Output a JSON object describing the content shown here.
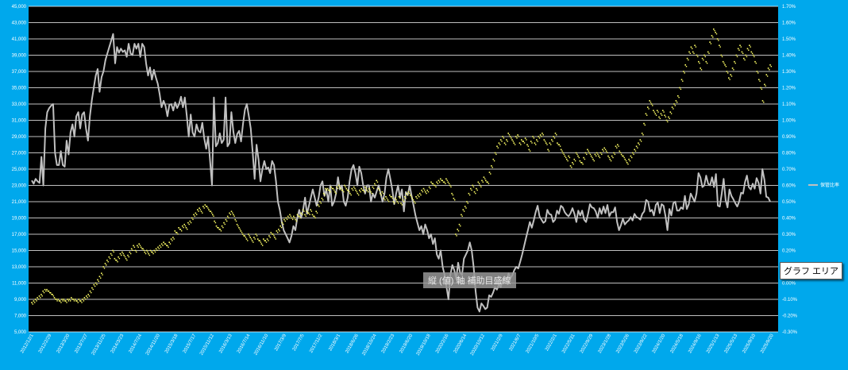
{
  "tooltip": "グラフ エリア",
  "axis_label_hint": "縦 (値) 軸 補助目盛線",
  "colors": {
    "background": "#00a8ec",
    "plot": "#000000",
    "grid": "#ffffff",
    "price_line": "#c0c0c0",
    "ratio_dots": "#ffff66"
  },
  "chart_data": {
    "type": "line",
    "grid": true,
    "legend_position": "right",
    "y_left": {
      "min": 5000,
      "max": 45000,
      "ticks": [
        "5,000",
        "7,000",
        "9,000",
        "11,000",
        "13,000",
        "15,000",
        "17,000",
        "19,000",
        "21,000",
        "23,000",
        "25,000",
        "27,000",
        "29,000",
        "31,000",
        "33,000",
        "35,000",
        "37,000",
        "39,000",
        "41,000",
        "43,000",
        "45,000"
      ]
    },
    "y_right": {
      "min": -0.3,
      "max": 1.7,
      "ticks": [
        "-0.30%",
        "-0.20%",
        "-0.10%",
        "0.00%",
        "0.10%",
        "0.20%",
        "0.30%",
        "0.40%",
        "0.50%",
        "0.60%",
        "0.70%",
        "0.80%",
        "0.90%",
        "1.00%",
        "1.10%",
        "1.20%",
        "1.30%",
        "1.40%",
        "1.50%",
        "1.60%",
        "1.70%"
      ]
    },
    "x_ticks": [
      "2012/12/1",
      "2012/2/29",
      "2013/3/20",
      "2013/7/27",
      "2013/11/25",
      "2014/3/23",
      "2014/7/24",
      "2014/11/20",
      "2015/3/18",
      "2015/7/17",
      "2015/11/12",
      "2016/3/13",
      "2016/7/14",
      "2016/11/10",
      "2017/3/9",
      "2017/7/5",
      "2017/11/2",
      "2018/3/1",
      "2018/6/26",
      "2018/10/24",
      "2019/2/23",
      "2019/6/20",
      "2019/10/18",
      "2020/2/16",
      "2020/6/14",
      "2020/10/12",
      "2021/2/9",
      "2021/6/7",
      "2021/10/5",
      "2022/2/1",
      "2022/5/31",
      "2022/9/29",
      "2023/1/28",
      "2023/5/26",
      "2023/9/22",
      "2024/1/20",
      "2024/5/18",
      "2024/9/16",
      "2025/1/13",
      "2025/5/13",
      "2025/9/10",
      "2025/9/20"
    ],
    "series": [
      {
        "key": "price",
        "axis": "left",
        "style": "line",
        "values": [
          23600,
          23200,
          23800,
          23500,
          23300,
          26500,
          23000,
          30000,
          32000,
          32500,
          32800,
          33000,
          27000,
          25500,
          25500,
          27200,
          25500,
          25300,
          28500,
          26800,
          29500,
          30500,
          29000,
          31500,
          32000,
          30000,
          31700,
          32000,
          30000,
          28500,
          31500,
          33500,
          35000,
          36500,
          37300,
          34500,
          36300,
          37000,
          38400,
          39200,
          40000,
          40800,
          41600,
          38000,
          40000,
          39300,
          39800,
          39400,
          39600,
          38800,
          40400,
          39200,
          39000,
          40400,
          39800,
          40400,
          38800,
          40400,
          40000,
          38000,
          36500,
          37500,
          36000,
          37200,
          36300,
          35500,
          34200,
          32600,
          33400,
          32800,
          31500,
          32900,
          33000,
          32200,
          33200,
          32500,
          33000,
          33900,
          32600,
          33800,
          31500,
          29000,
          31700,
          29500,
          29000,
          30500,
          29700,
          29500,
          30700,
          28800,
          27500,
          29000,
          26000,
          23000,
          33800,
          27800,
          28200,
          29400,
          28200,
          28600,
          33800,
          27800,
          28200,
          32000,
          29600,
          28200,
          29300,
          29700,
          28400,
          30600,
          32300,
          33000,
          31500,
          30000,
          27000,
          23800,
          28000,
          26200,
          23500,
          25000,
          26000,
          25000,
          25200,
          24500,
          26000,
          25500,
          23500,
          21000,
          20000,
          18500,
          17500,
          17000,
          16500,
          16000,
          16800,
          18000,
          17500,
          19000,
          20000,
          19000,
          20000,
          21500,
          19500,
          20500,
          21500,
          22500,
          21500,
          20500,
          21500,
          23000,
          23500,
          21700,
          22500,
          21000,
          23000,
          20500,
          21000,
          22000,
          24000,
          22500,
          23000,
          21000,
          20500,
          21500,
          23500,
          25000,
          25500,
          24500,
          23000,
          25300,
          24500,
          23000,
          22000,
          23000,
          23000,
          21000,
          22000,
          21500,
          22300,
          23000,
          22000,
          21000,
          22000,
          24000,
          25000,
          23800,
          22500,
          20700,
          22000,
          23000,
          21500,
          22500,
          19800,
          22200,
          21800,
          23000,
          21700,
          20500,
          19300,
          18400,
          17500,
          18000,
          17000,
          18200,
          17500,
          16500,
          17000,
          15800,
          16500,
          14500,
          14000,
          15000,
          13000,
          12000,
          10500,
          9000,
          12000,
          13200,
          12600,
          11500,
          13500,
          12300,
          12000,
          14000,
          14500,
          15000,
          16000,
          15000,
          13000,
          10000,
          8000,
          7500,
          8500,
          8200,
          7800,
          8000,
          9500,
          9300,
          9800,
          10500,
          10200,
          10800,
          10500,
          11500,
          11800,
          11300,
          12200,
          11600,
          12000,
          12600,
          13000,
          12800,
          13600,
          14500,
          15500,
          16500,
          17500,
          18500,
          17800,
          18700,
          19700,
          20500,
          19200,
          18800,
          18400,
          18600,
          20000,
          19500,
          19400,
          18500,
          18800,
          19900,
          19500,
          20500,
          20300,
          19700,
          19400,
          19200,
          19600,
          20200,
          19500,
          18500,
          19900,
          19300,
          19900,
          18800,
          18500,
          19500,
          20700,
          20300,
          20200,
          19800,
          19000,
          20200,
          19500,
          20400,
          19600,
          20600,
          19200,
          19700,
          19700,
          20300,
          18500,
          17500,
          18100,
          18900,
          18200,
          18500,
          18700,
          19100,
          18700,
          19500,
          19100,
          19000,
          18800,
          19500,
          19800,
          21200,
          21000,
          19800,
          20000,
          19300,
          20600,
          20900,
          19600,
          20700,
          20500,
          19200,
          17500,
          20100,
          19300,
          20800,
          21000,
          19900,
          19900,
          20300,
          20100,
          21700,
          20100,
          20700,
          22000,
          21500,
          21000,
          22000,
          24500,
          24000,
          22800,
          23000,
          24200,
          23200,
          23000,
          24000,
          22800,
          24400,
          20500,
          20400,
          22000,
          23800,
          21200,
          20300,
          22500,
          21700,
          21300,
          20800,
          20400,
          21000,
          22100,
          22000,
          23400,
          24200,
          22800,
          22500,
          23200,
          22600,
          23900,
          23300,
          22000,
          25000,
          23700,
          21600,
          21500,
          21000
        ]
      },
      {
        "key": "ratio",
        "axis": "right",
        "style": "dots",
        "name": "保管比率",
        "values": [
          -0.12,
          -0.11,
          -0.1,
          -0.09,
          -0.08,
          -0.07,
          -0.05,
          -0.04,
          -0.04,
          -0.05,
          -0.06,
          -0.07,
          -0.09,
          -0.1,
          -0.1,
          -0.11,
          -0.1,
          -0.1,
          -0.11,
          -0.1,
          -0.1,
          -0.09,
          -0.1,
          -0.1,
          -0.11,
          -0.1,
          -0.11,
          -0.1,
          -0.09,
          -0.08,
          -0.07,
          -0.05,
          -0.03,
          -0.01,
          0.0,
          0.02,
          0.04,
          0.06,
          0.1,
          0.12,
          0.14,
          0.16,
          0.18,
          0.2,
          0.15,
          0.14,
          0.16,
          0.18,
          0.19,
          0.17,
          0.15,
          0.17,
          0.19,
          0.21,
          0.23,
          0.2,
          0.23,
          0.24,
          0.22,
          0.21,
          0.19,
          0.2,
          0.18,
          0.2,
          0.19,
          0.2,
          0.21,
          0.22,
          0.23,
          0.24,
          0.25,
          0.24,
          0.23,
          0.25,
          0.27,
          0.28,
          0.32,
          0.31,
          0.34,
          0.33,
          0.35,
          0.36,
          0.34,
          0.37,
          0.38,
          0.4,
          0.42,
          0.43,
          0.45,
          0.46,
          0.44,
          0.47,
          0.48,
          0.47,
          0.45,
          0.44,
          0.42,
          0.38,
          0.35,
          0.34,
          0.33,
          0.35,
          0.37,
          0.39,
          0.41,
          0.43,
          0.44,
          0.42,
          0.39,
          0.36,
          0.34,
          0.32,
          0.3,
          0.29,
          0.27,
          0.3,
          0.28,
          0.26,
          0.28,
          0.3,
          0.27,
          0.26,
          0.24,
          0.27,
          0.26,
          0.27,
          0.29,
          0.31,
          0.3,
          0.28,
          0.32,
          0.33,
          0.35,
          0.37,
          0.39,
          0.4,
          0.41,
          0.42,
          0.4,
          0.41,
          0.39,
          0.42,
          0.41,
          0.43,
          0.45,
          0.42,
          0.44,
          0.43,
          0.45,
          0.42,
          0.41,
          0.44,
          0.48,
          0.5,
          0.52,
          0.55,
          0.58,
          0.58,
          0.57,
          0.59,
          0.58,
          0.56,
          0.59,
          0.6,
          0.58,
          0.57,
          0.6,
          0.58,
          0.57,
          0.55,
          0.58,
          0.59,
          0.57,
          0.55,
          0.57,
          0.58,
          0.57,
          0.59,
          0.57,
          0.58,
          0.56,
          0.59,
          0.61,
          0.63,
          0.58,
          0.55,
          0.56,
          0.52,
          0.53,
          0.51,
          0.54,
          0.53,
          0.5,
          0.52,
          0.5,
          0.53,
          0.49,
          0.51,
          0.53,
          0.55,
          0.56,
          0.54,
          0.52,
          0.5,
          0.53,
          0.54,
          0.55,
          0.57,
          0.58,
          0.56,
          0.57,
          0.59,
          0.62,
          0.61,
          0.6,
          0.62,
          0.63,
          0.64,
          0.63,
          0.62,
          0.64,
          0.62,
          0.6,
          0.55,
          0.52,
          0.3,
          0.33,
          0.36,
          0.42,
          0.45,
          0.47,
          0.5,
          0.55,
          0.58,
          0.6,
          0.56,
          0.58,
          0.62,
          0.6,
          0.63,
          0.65,
          0.63,
          0.62,
          0.68,
          0.72,
          0.76,
          0.8,
          0.84,
          0.86,
          0.88,
          0.9,
          0.86,
          0.88,
          0.92,
          0.9,
          0.88,
          0.86,
          0.9,
          0.91,
          0.86,
          0.88,
          0.87,
          0.89,
          0.85,
          0.82,
          0.87,
          0.9,
          0.86,
          0.88,
          0.9,
          0.91,
          0.92,
          0.88,
          0.86,
          0.82,
          0.86,
          0.88,
          0.9,
          0.92,
          0.86,
          0.85,
          0.82,
          0.8,
          0.78,
          0.76,
          0.78,
          0.72,
          0.74,
          0.76,
          0.8,
          0.78,
          0.75,
          0.74,
          0.77,
          0.8,
          0.82,
          0.8,
          0.78,
          0.76,
          0.79,
          0.8,
          0.78,
          0.8,
          0.82,
          0.83,
          0.81,
          0.78,
          0.76,
          0.78,
          0.8,
          0.84,
          0.85,
          0.81,
          0.79,
          0.78,
          0.76,
          0.74,
          0.76,
          0.78,
          0.8,
          0.82,
          0.84,
          0.86,
          0.88,
          0.92,
          0.98,
          1.04,
          1.08,
          1.12,
          1.1,
          1.06,
          1.04,
          1.06,
          1.02,
          1.04,
          1.06,
          1.03,
          1.0,
          1.02,
          1.05,
          1.08,
          1.1,
          1.12,
          1.15,
          1.2,
          1.25,
          1.3,
          1.34,
          1.38,
          1.42,
          1.45,
          1.42,
          1.46,
          1.4,
          1.36,
          1.32,
          1.38,
          1.4,
          1.36,
          1.42,
          1.48,
          1.52,
          1.56,
          1.54,
          1.5,
          1.46,
          1.4,
          1.36,
          1.34,
          1.3,
          1.26,
          1.28,
          1.32,
          1.36,
          1.4,
          1.44,
          1.46,
          1.42,
          1.38,
          1.4,
          1.44,
          1.46,
          1.42,
          1.4,
          1.36,
          1.3,
          1.25,
          1.2,
          1.12,
          1.22,
          1.28,
          1.32,
          1.34
        ]
      }
    ]
  }
}
